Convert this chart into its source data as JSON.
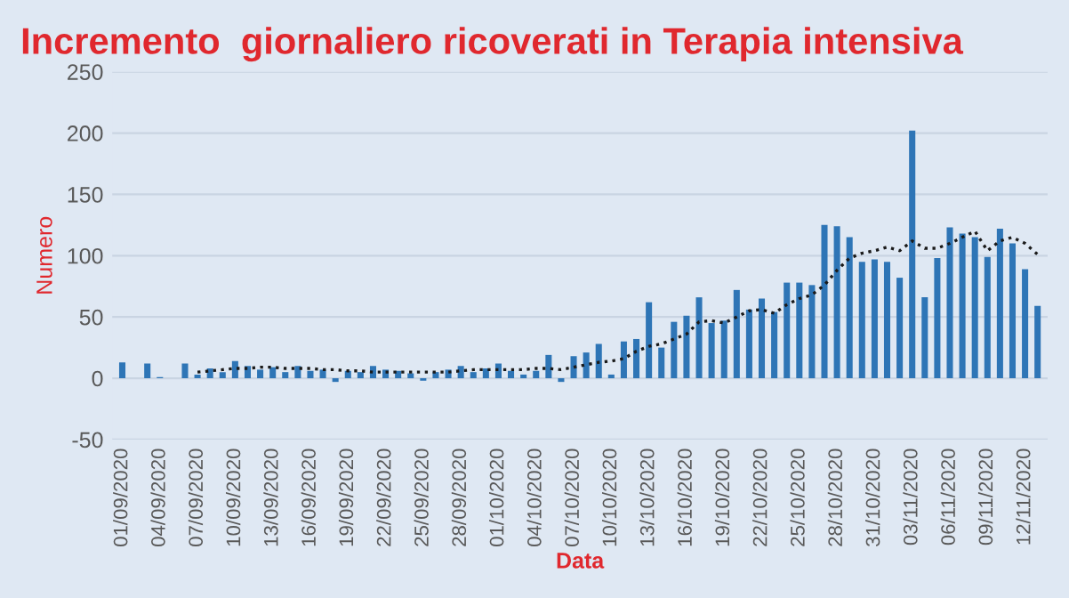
{
  "chart_data": {
    "type": "bar",
    "title": "Incremento  giornaliero ricoverati in Terapia intensiva",
    "xlabel": "Data",
    "ylabel": "Numero",
    "categories": [
      "01/09/2020",
      null,
      null,
      "04/09/2020",
      null,
      null,
      "07/09/2020",
      null,
      null,
      "10/09/2020",
      null,
      null,
      "13/09/2020",
      null,
      null,
      "16/09/2020",
      null,
      null,
      "19/09/2020",
      null,
      null,
      "22/09/2020",
      null,
      null,
      "25/09/2020",
      null,
      null,
      "28/09/2020",
      null,
      null,
      "01/10/2020",
      null,
      null,
      "04/10/2020",
      null,
      null,
      "07/10/2020",
      null,
      null,
      "10/10/2020",
      null,
      null,
      "13/10/2020",
      null,
      null,
      "16/10/2020",
      null,
      null,
      "19/10/2020",
      null,
      null,
      "22/10/2020",
      null,
      null,
      "25/10/2020",
      null,
      null,
      "28/10/2020",
      null,
      null,
      "31/10/2020",
      null,
      null,
      "03/11/2020",
      null,
      null,
      "06/11/2020",
      null,
      null,
      "09/11/2020",
      null,
      null,
      "12/11/2020",
      null
    ],
    "series": [
      {
        "color": "#2e75b6",
        "values": [
          13,
          0,
          12,
          1,
          0,
          12,
          3,
          8,
          5,
          14,
          10,
          7,
          9,
          5,
          10,
          6,
          7,
          -3,
          6,
          5,
          10,
          7,
          6,
          4,
          -2,
          5,
          7,
          10,
          5,
          8,
          12,
          6,
          3,
          6,
          19,
          -3,
          18,
          21,
          28,
          3,
          30,
          32,
          62,
          25,
          46,
          51,
          66,
          45,
          47,
          72,
          56,
          65,
          54,
          78,
          78,
          76,
          125,
          124,
          115,
          95,
          97,
          95,
          82,
          202,
          66,
          98,
          123,
          118,
          115,
          99,
          122,
          110,
          89,
          59
        ]
      },
      {
        "type": "line",
        "color": "#1a1a1a",
        "marker": "none",
        "line_style": "dotted",
        "values": [
          null,
          null,
          null,
          null,
          null,
          null,
          5,
          6,
          7,
          8,
          8,
          9,
          9,
          8,
          8,
          8,
          7,
          7,
          6,
          6,
          5,
          5,
          5,
          5,
          5,
          5,
          5,
          6,
          7,
          7,
          7,
          7,
          7,
          8,
          8,
          7,
          9,
          11,
          13,
          14,
          16,
          22,
          26,
          28,
          32,
          36,
          46,
          47,
          45,
          50,
          55,
          56,
          53,
          60,
          65,
          68,
          76,
          88,
          98,
          102,
          104,
          107,
          104,
          112,
          106,
          106,
          110,
          115,
          120,
          104,
          112,
          115,
          110,
          101
        ]
      }
    ],
    "ylim": [
      -50,
      250
    ],
    "yticks": [
      {
        "value": -50,
        "label": "-50"
      },
      0,
      50,
      100,
      150,
      200,
      250
    ],
    "grid": "y",
    "legend": false
  }
}
